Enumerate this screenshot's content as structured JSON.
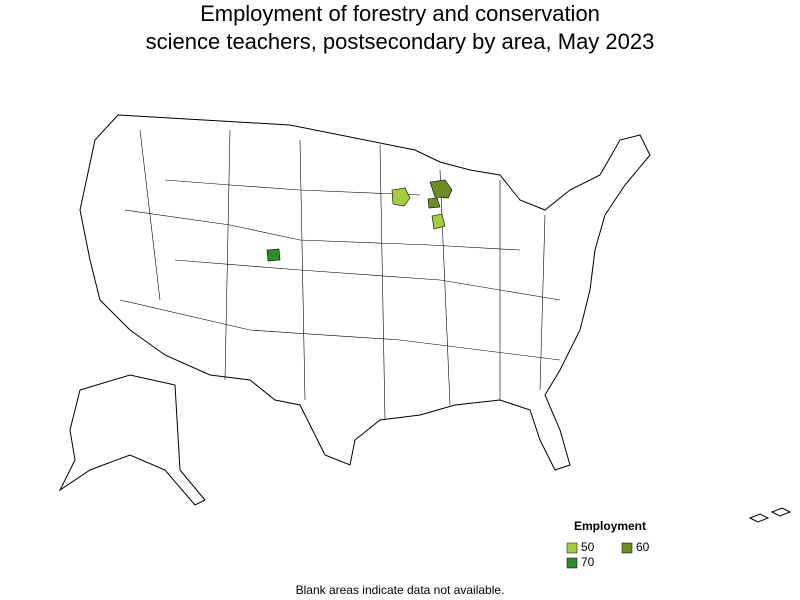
{
  "title": [
    "Employment of forestry and conservation",
    "science teachers, postsecondary by area, May 2023"
  ],
  "legend": {
    "title": "Employment",
    "items": [
      {
        "value": 50,
        "color": "#a3cc3f"
      },
      {
        "value": 60,
        "color": "#6b8e23"
      },
      {
        "value": 70,
        "color": "#2e8b2e"
      }
    ]
  },
  "areas": [
    {
      "value": 50
    },
    {
      "value": 50
    },
    {
      "value": 60
    },
    {
      "value": 60
    },
    {
      "value": 70
    }
  ],
  "footnote": "Blank areas indicate data not available."
}
